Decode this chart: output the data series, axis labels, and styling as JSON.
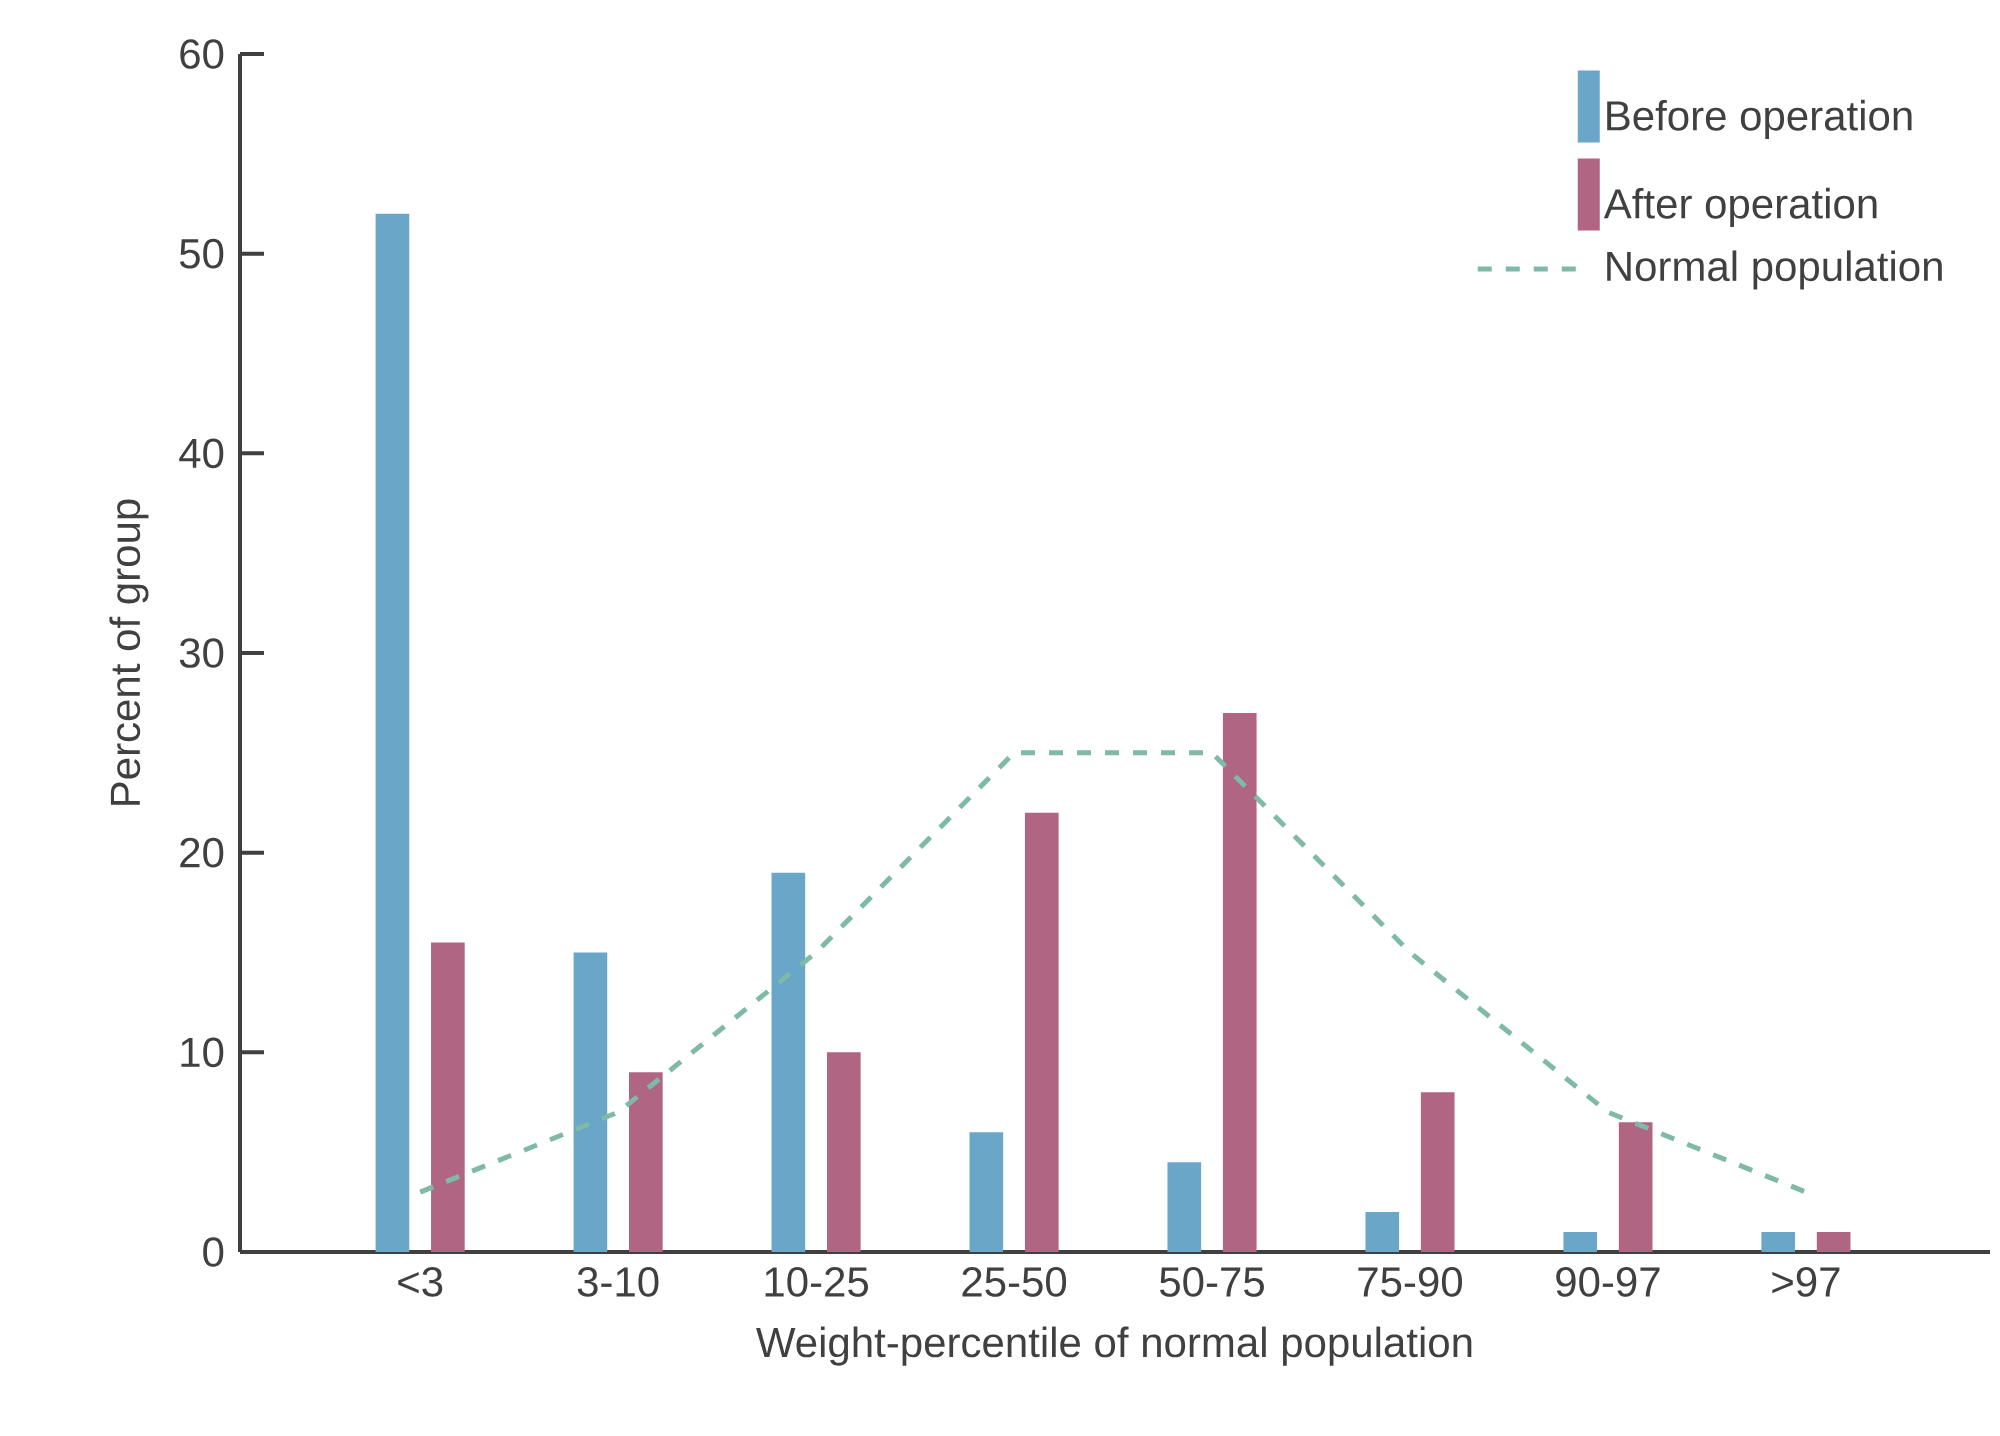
{
  "chart_data": {
    "type": "bar",
    "xlabel": "Weight-percentile of normal population",
    "ylabel": "Percent of group",
    "categories": [
      "<3",
      "3-10",
      "10-25",
      "25-50",
      "50-75",
      "75-90",
      "90-97",
      ">97"
    ],
    "ylim": [
      0,
      60
    ],
    "yticks": [
      0,
      10,
      20,
      30,
      40,
      50,
      60
    ],
    "legend": "top right",
    "series": [
      {
        "name": "Before operation",
        "color": "#6aa6c8",
        "values": [
          52,
          15,
          19,
          6,
          4.5,
          2,
          1,
          1
        ]
      },
      {
        "name": "After operation",
        "color": "#b06582",
        "values": [
          15.5,
          9,
          10,
          22,
          27,
          8,
          6.5,
          1
        ]
      },
      {
        "name": "Normal population",
        "type": "line",
        "line_style": "dashed",
        "color": "#7fb9a8",
        "values": [
          3,
          7,
          15,
          25,
          25,
          15,
          7,
          3
        ]
      }
    ]
  }
}
